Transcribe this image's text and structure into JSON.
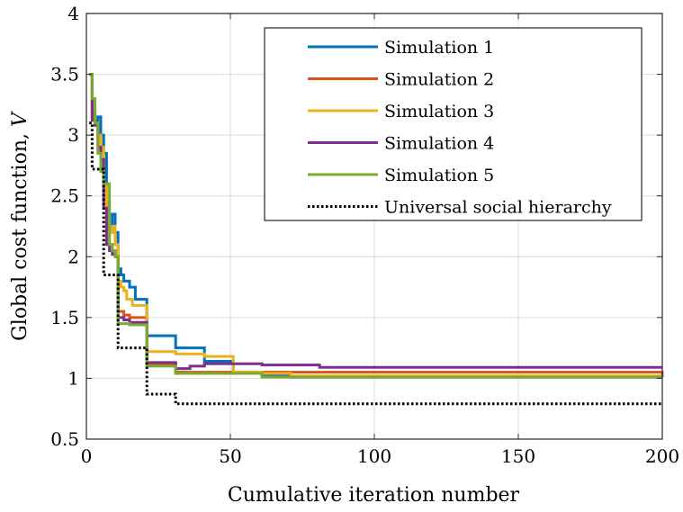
{
  "chart_data": {
    "type": "line",
    "title": "",
    "xlabel": "Cumulative iteration number",
    "ylabel_text": "Global cost function, ",
    "ylabel_var": "V",
    "xlim": [
      0,
      200
    ],
    "ylim": [
      0.5,
      4
    ],
    "xticks": [
      "0",
      "50",
      "100",
      "150",
      "200"
    ],
    "yticks": [
      "0.5",
      "1",
      "1.5",
      "2",
      "2.5",
      "3",
      "3.5",
      "4"
    ],
    "grid": true,
    "legend_position": "top-right",
    "step": true,
    "series": [
      {
        "name": "Simulation 1",
        "color": "#0072BD",
        "style": "solid",
        "x": [
          1,
          2,
          3,
          4,
          5,
          6,
          7,
          8,
          9,
          10,
          11,
          12,
          13,
          15,
          17,
          21,
          31,
          41,
          51,
          61,
          71,
          200
        ],
        "y": [
          3.5,
          3.18,
          3.12,
          3.15,
          3.0,
          2.85,
          2.45,
          2.2,
          2.35,
          2.2,
          1.9,
          1.85,
          1.8,
          1.75,
          1.65,
          1.35,
          1.25,
          1.14,
          1.04,
          1.02,
          1.01,
          1.01
        ]
      },
      {
        "name": "Simulation 2",
        "color": "#D95319",
        "style": "solid",
        "x": [
          1,
          2,
          3,
          4,
          5,
          6,
          7,
          8,
          9,
          10,
          11,
          13,
          15,
          21,
          31,
          200
        ],
        "y": [
          3.5,
          3.2,
          3.1,
          3.0,
          2.8,
          2.6,
          2.2,
          2.1,
          2.05,
          2.0,
          1.55,
          1.52,
          1.5,
          1.12,
          1.05,
          1.01
        ]
      },
      {
        "name": "Simulation 3",
        "color": "#EDB120",
        "style": "solid",
        "x": [
          1,
          2,
          3,
          4,
          5,
          6,
          7,
          8,
          9,
          10,
          11,
          12,
          13,
          14,
          16,
          21,
          31,
          41,
          51,
          61,
          71,
          200
        ],
        "y": [
          3.5,
          3.15,
          3.1,
          3.0,
          2.9,
          2.6,
          2.3,
          2.2,
          2.25,
          2.1,
          1.8,
          1.75,
          1.72,
          1.65,
          1.6,
          1.22,
          1.2,
          1.18,
          1.05,
          1.04,
          1.02,
          1.02
        ]
      },
      {
        "name": "Simulation 4",
        "color": "#7E2F8E",
        "style": "solid",
        "x": [
          1,
          2,
          3,
          4,
          5,
          6,
          7,
          8,
          9,
          10,
          11,
          13,
          15,
          21,
          31,
          36,
          41,
          61,
          81,
          200
        ],
        "y": [
          3.5,
          3.12,
          3.08,
          2.9,
          2.8,
          2.4,
          2.1,
          2.05,
          2.02,
          2.0,
          1.5,
          1.48,
          1.46,
          1.13,
          1.08,
          1.1,
          1.12,
          1.11,
          1.09,
          1.09
        ]
      },
      {
        "name": "Simulation 5",
        "color": "#77AC30",
        "style": "solid",
        "x": [
          1,
          2,
          3,
          4,
          5,
          6,
          7,
          8,
          9,
          10,
          11,
          13,
          15,
          21,
          31,
          61,
          200
        ],
        "y": [
          3.5,
          3.3,
          3.1,
          2.85,
          2.7,
          2.6,
          2.6,
          2.1,
          2.05,
          2.0,
          1.45,
          1.45,
          1.44,
          1.1,
          1.04,
          1.01,
          1.01
        ]
      },
      {
        "name": "Universal social hierarchy",
        "color": "#000000",
        "style": "dotted",
        "x": [
          1,
          2,
          6,
          11,
          21,
          31,
          200
        ],
        "y": [
          3.1,
          2.72,
          1.85,
          1.25,
          0.87,
          0.79,
          0.79
        ]
      }
    ]
  }
}
